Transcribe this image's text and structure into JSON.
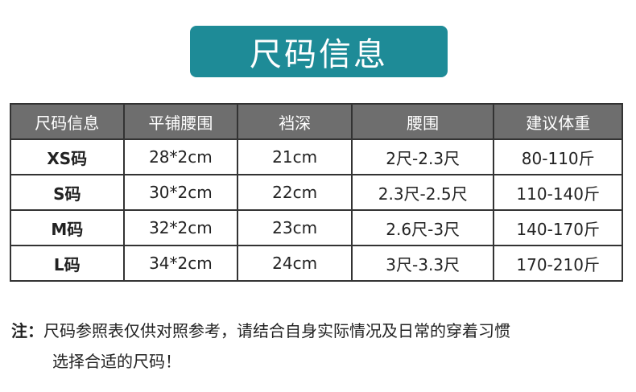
{
  "title": "尺码信息",
  "colors": {
    "banner": "#1e8b97",
    "header": "#6e6e6e"
  },
  "table": {
    "headers": [
      "尺码信息",
      "平铺腰围",
      "裆深",
      "腰围",
      "建议体重"
    ],
    "rows": [
      [
        "XS码",
        "28*2cm",
        "21cm",
        "2尺-2.3尺",
        "80-110斤"
      ],
      [
        "S码",
        "30*2cm",
        "22cm",
        "2.3尺-2.5尺",
        "110-140斤"
      ],
      [
        "M码",
        "32*2cm",
        "23cm",
        "2.6尺-3尺",
        "140-170斤"
      ],
      [
        "L码",
        "34*2cm",
        "24cm",
        "3尺-3.3尺",
        "170-210斤"
      ]
    ]
  },
  "note": {
    "label": "注：",
    "line1": "尺码参照表仅供对照参考，请结合自身实际情况及日常的穿着习惯",
    "line2": "选择合适的尺码！"
  }
}
